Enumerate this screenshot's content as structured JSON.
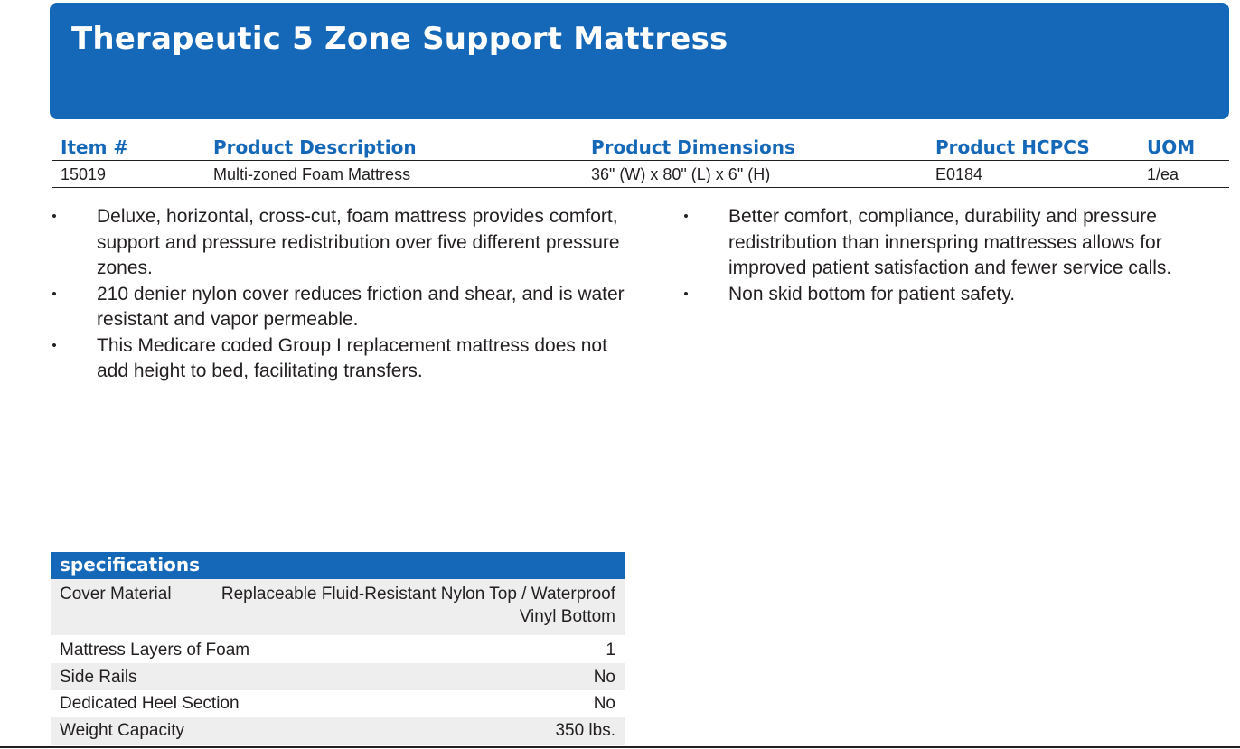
{
  "banner": {
    "title": "Therapeutic 5 Zone Support Mattress"
  },
  "product_table": {
    "headers": [
      "Item #",
      "Product Description",
      "Product Dimensions",
      "Product HCPCS",
      "UOM"
    ],
    "rows": [
      [
        "15019",
        "Multi-zoned Foam Mattress",
        "36\" (W) x 80\" (L) x 6\" (H)",
        "E0184",
        "1/ea"
      ]
    ]
  },
  "bullets_left": [
    "Deluxe, horizontal, cross-cut, foam mattress provides comfort, support and pressure redistribution over five different pressure zones.",
    "210 denier nylon cover reduces friction and shear, and is water resistant and vapor permeable.",
    "This Medicare coded Group I replacement mattress does not add height to bed, facilitating transfers."
  ],
  "bullets_right": [
    "Better comfort, compliance, durability and pressure redistribution than innerspring mattresses allows for improved patient satisfaction and fewer service calls.",
    "Non skid bottom for patient safety."
  ],
  "bullet_glyph": "•",
  "specifications": {
    "heading": "specifications",
    "rows": [
      {
        "label": "Cover Material",
        "value": "Replaceable Fluid-Resistant Nylon Top / Waterproof Vinyl Bottom"
      },
      {
        "label": "Mattress Layers of Foam",
        "value": "1"
      },
      {
        "label": "Side Rails",
        "value": "No"
      },
      {
        "label": "Dedicated Heel Section",
        "value": "No"
      },
      {
        "label": "Weight Capacity",
        "value": "350 lbs."
      }
    ]
  },
  "colors": {
    "brand_blue": "#1568b8",
    "row_shade": "#eeeeee",
    "text": "#231f20"
  }
}
